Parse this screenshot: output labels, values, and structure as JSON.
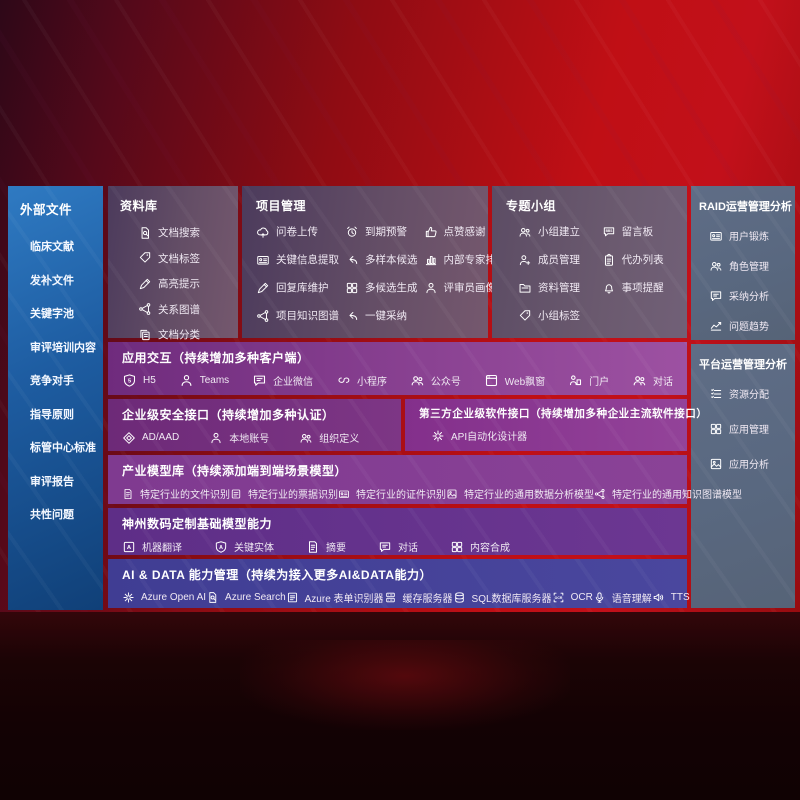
{
  "palette": {
    "background_red": "#c00f15",
    "background_dark": "#140304",
    "sidebar_blue": "#1e5da2",
    "panel_mauve": "#644e66",
    "panel_slate": "#596880",
    "band_purple": "#8a4292",
    "band_violet": "#6c3792",
    "band_indigo": "#4a479e",
    "text": "#ffffff"
  },
  "left_sidebar": {
    "title": "外部文件",
    "items": [
      {
        "label": "临床文献"
      },
      {
        "label": "发补文件"
      },
      {
        "label": "关键字池"
      },
      {
        "label": "审评培训内容"
      },
      {
        "label": "竞争对手"
      },
      {
        "label": "指导原则"
      },
      {
        "label": "标管中心标准"
      },
      {
        "label": "审评报告"
      },
      {
        "label": "共性问题"
      }
    ]
  },
  "panels": {
    "library": {
      "title": "资料库",
      "items": [
        {
          "icon": "doc-search",
          "label": "文档搜索"
        },
        {
          "icon": "doc-tag",
          "label": "文档标签"
        },
        {
          "icon": "highlight-pen",
          "label": "高亮提示"
        },
        {
          "icon": "relation-graph",
          "label": "关系图谱"
        },
        {
          "icon": "doc-category",
          "label": "文档分类"
        }
      ]
    },
    "project": {
      "title": "项目管理",
      "items": [
        {
          "icon": "questionnaire-upload",
          "label": "问卷上传"
        },
        {
          "icon": "due-warning",
          "label": "到期预警"
        },
        {
          "icon": "like-thanks",
          "label": "点赞感谢"
        },
        {
          "icon": "key-info-extract",
          "label": "关键信息提取"
        },
        {
          "icon": "multi-sample",
          "label": "多样本候选"
        },
        {
          "icon": "expert-rank",
          "label": "内部专家排名"
        },
        {
          "icon": "reply-maintain",
          "label": "回复库维护"
        },
        {
          "icon": "multi-generate",
          "label": "多候选生成"
        },
        {
          "icon": "reviewer-profile",
          "label": "评审员画像"
        },
        {
          "icon": "project-kg",
          "label": "项目知识图谱"
        },
        {
          "icon": "one-click-adopt",
          "label": "一键采纳"
        }
      ]
    },
    "groups": {
      "title": "专题小组",
      "items": [
        {
          "icon": "group-create",
          "label": "小组建立"
        },
        {
          "icon": "message-board",
          "label": "留言板"
        },
        {
          "icon": "member-manage",
          "label": "成员管理"
        },
        {
          "icon": "todo-list",
          "label": "代办列表"
        },
        {
          "icon": "data-manage",
          "label": "资料管理"
        },
        {
          "icon": "remind-bell",
          "label": "事项提醒"
        },
        {
          "icon": "group-tag",
          "label": "小组标签"
        }
      ]
    },
    "raid": {
      "title": "RAID运营管理分析",
      "items": [
        {
          "icon": "user-card",
          "label": "用户锻炼"
        },
        {
          "icon": "role-manage",
          "label": "角色管理"
        },
        {
          "icon": "adoption-analysis",
          "label": "采纳分析"
        },
        {
          "icon": "issue-trend",
          "label": "问题趋势"
        }
      ]
    },
    "platform": {
      "title": "平台运营管理分析",
      "items": [
        {
          "icon": "resource-alloc",
          "label": "资源分配"
        },
        {
          "icon": "app-manage",
          "label": "应用管理"
        },
        {
          "icon": "app-analysis",
          "label": "应用分析"
        }
      ]
    },
    "interaction": {
      "title": "应用交互（持续增加多种客户端）",
      "items": [
        {
          "icon": "h5",
          "label": "H5"
        },
        {
          "icon": "teams",
          "label": "Teams"
        },
        {
          "icon": "wecom",
          "label": "企业微信"
        },
        {
          "icon": "miniprogram",
          "label": "小程序"
        },
        {
          "icon": "official-account",
          "label": "公众号"
        },
        {
          "icon": "web-popup",
          "label": "Web飘窗"
        },
        {
          "icon": "portal",
          "label": "门户"
        },
        {
          "icon": "dialogue",
          "label": "对话"
        }
      ]
    },
    "security": {
      "title": "企业级安全接口（持续增加多种认证）",
      "items": [
        {
          "icon": "ad-aad",
          "label": "AD/AAD"
        },
        {
          "icon": "local-account",
          "label": "本地账号"
        },
        {
          "icon": "org-define",
          "label": "组织定义"
        }
      ]
    },
    "thirdparty": {
      "title": "第三方企业级软件接口（持续增加多种企业主流软件接口）",
      "items": [
        {
          "icon": "api-designer",
          "label": "API自动化设计器"
        }
      ]
    },
    "industry": {
      "title": "产业模型库（持续添加端到端场景模型）",
      "items": [
        {
          "icon": "industry-file",
          "label": "特定行业的文件识别"
        },
        {
          "icon": "industry-receipt",
          "label": "特定行业的票据识别"
        },
        {
          "icon": "industry-card",
          "label": "特定行业的证件识别"
        },
        {
          "icon": "industry-data-model",
          "label": "特定行业的通用数据分析模型"
        },
        {
          "icon": "industry-kg-model",
          "label": "特定行业的通用知识图谱模型"
        }
      ]
    },
    "basemodels": {
      "title": "神州数码定制基础模型能力",
      "items": [
        {
          "icon": "machine-translate",
          "label": "机器翻译"
        },
        {
          "icon": "key-entity",
          "label": "关键实体"
        },
        {
          "icon": "summary",
          "label": "摘要"
        },
        {
          "icon": "chat-dialogue",
          "label": "对话"
        },
        {
          "icon": "content-compose",
          "label": "内容合成"
        }
      ]
    },
    "aidata": {
      "title": "AI & DATA 能力管理（持续为接入更多AI&DATA能力）",
      "items": [
        {
          "icon": "azure-openai",
          "label": "Azure Open AI"
        },
        {
          "icon": "azure-search",
          "label": "Azure Search"
        },
        {
          "icon": "azure-form",
          "label": "Azure 表单识别器"
        },
        {
          "icon": "cache-server",
          "label": "缓存服务器"
        },
        {
          "icon": "sql-db",
          "label": "SQL数据库服务器"
        },
        {
          "icon": "ocr",
          "label": "OCR"
        },
        {
          "icon": "speech",
          "label": "语音理解"
        },
        {
          "icon": "tts",
          "label": "TTS"
        }
      ]
    }
  }
}
